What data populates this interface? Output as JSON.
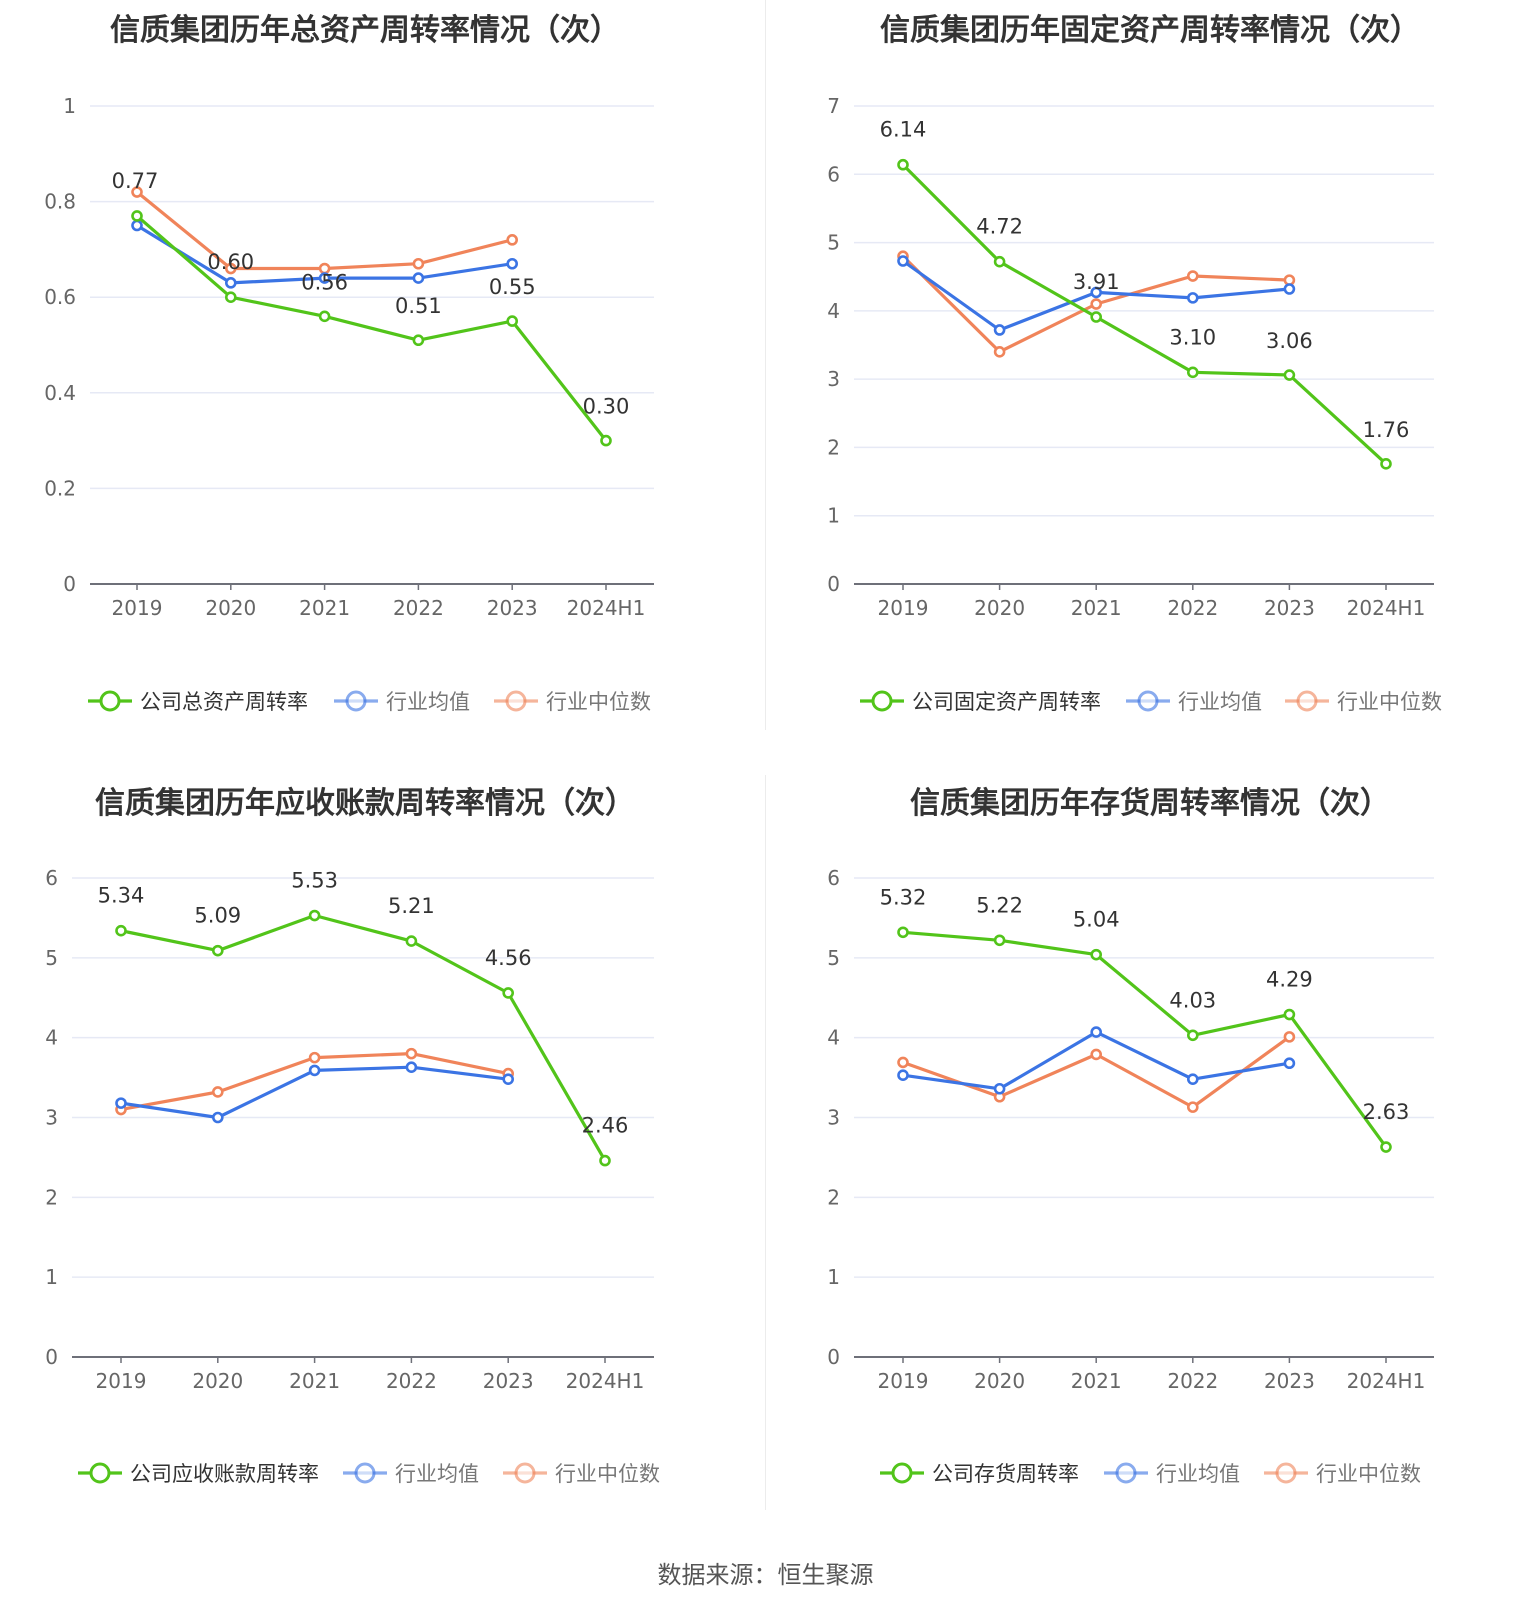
{
  "colors": {
    "company": "#52c41a",
    "avg": "#3b74e4",
    "median": "#f0845a",
    "grid": "#e6e9f5",
    "axis": "#6e7079"
  },
  "footer": "数据来源：恒生聚源",
  "chart_data": [
    {
      "type": "line",
      "title": "信质集团历年总资产周转率情况（次）",
      "categories": [
        "2019",
        "2020",
        "2021",
        "2022",
        "2023",
        "2024H1"
      ],
      "yticks": [
        "0",
        "0.2",
        "0.4",
        "0.6",
        "0.8",
        "1"
      ],
      "ylim": [
        0,
        1
      ],
      "series": [
        {
          "name": "公司总资产周转率",
          "key": "company",
          "values": [
            0.77,
            0.6,
            0.56,
            0.51,
            0.55,
            0.3
          ],
          "labels": [
            "0.77",
            "0.60",
            "0.56",
            "0.51",
            "0.55",
            "0.30"
          ]
        },
        {
          "name": "行业均值",
          "key": "avg",
          "values": [
            0.75,
            0.63,
            0.64,
            0.64,
            0.67,
            null
          ]
        },
        {
          "name": "行业中位数",
          "key": "median",
          "values": [
            0.82,
            0.66,
            0.66,
            0.67,
            0.72,
            null
          ]
        }
      ],
      "grid": true,
      "legend": "bottom"
    },
    {
      "type": "line",
      "title": "信质集团历年固定资产周转率情况（次）",
      "categories": [
        "2019",
        "2020",
        "2021",
        "2022",
        "2023",
        "2024H1"
      ],
      "yticks": [
        "0",
        "1",
        "2",
        "3",
        "4",
        "5",
        "6",
        "7"
      ],
      "ylim": [
        0,
        7
      ],
      "series": [
        {
          "name": "公司固定资产周转率",
          "key": "company",
          "values": [
            6.14,
            4.72,
            3.91,
            3.1,
            3.06,
            1.76
          ],
          "labels": [
            "6.14",
            "4.72",
            "3.91",
            "3.10",
            "3.06",
            "1.76"
          ]
        },
        {
          "name": "行业均值",
          "key": "avg",
          "values": [
            4.73,
            3.72,
            4.27,
            4.19,
            4.32,
            null
          ]
        },
        {
          "name": "行业中位数",
          "key": "median",
          "values": [
            4.8,
            3.4,
            4.1,
            4.51,
            4.45,
            null
          ]
        }
      ],
      "grid": true,
      "legend": "bottom"
    },
    {
      "type": "line",
      "title": "信质集团历年应收账款周转率情况（次）",
      "categories": [
        "2019",
        "2020",
        "2021",
        "2022",
        "2023",
        "2024H1"
      ],
      "yticks": [
        "0",
        "1",
        "2",
        "3",
        "4",
        "5",
        "6"
      ],
      "ylim": [
        0,
        6
      ],
      "series": [
        {
          "name": "公司应收账款周转率",
          "key": "company",
          "values": [
            5.34,
            5.09,
            5.53,
            5.21,
            4.56,
            2.46
          ],
          "labels": [
            "5.34",
            "5.09",
            "5.53",
            "5.21",
            "4.56",
            "2.46"
          ]
        },
        {
          "name": "行业均值",
          "key": "avg",
          "values": [
            3.18,
            3.0,
            3.59,
            3.63,
            3.48,
            null
          ]
        },
        {
          "name": "行业中位数",
          "key": "median",
          "values": [
            3.1,
            3.32,
            3.75,
            3.8,
            3.55,
            null
          ]
        }
      ],
      "grid": true,
      "legend": "bottom"
    },
    {
      "type": "line",
      "title": "信质集团历年存货周转率情况（次）",
      "categories": [
        "2019",
        "2020",
        "2021",
        "2022",
        "2023",
        "2024H1"
      ],
      "yticks": [
        "0",
        "1",
        "2",
        "3",
        "4",
        "5",
        "6"
      ],
      "ylim": [
        0,
        6
      ],
      "series": [
        {
          "name": "公司存货周转率",
          "key": "company",
          "values": [
            5.32,
            5.22,
            5.04,
            4.03,
            4.29,
            2.63
          ],
          "labels": [
            "5.32",
            "5.22",
            "5.04",
            "4.03",
            "4.29",
            "2.63"
          ]
        },
        {
          "name": "行业均值",
          "key": "avg",
          "values": [
            3.53,
            3.36,
            4.07,
            3.48,
            3.68,
            null
          ]
        },
        {
          "name": "行业中位数",
          "key": "median",
          "values": [
            3.69,
            3.26,
            3.79,
            3.13,
            4.01,
            null
          ]
        }
      ],
      "grid": true,
      "legend": "bottom"
    }
  ]
}
